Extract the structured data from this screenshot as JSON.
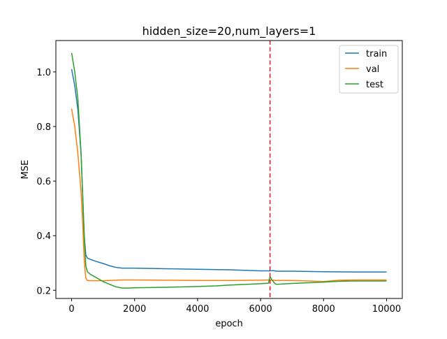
{
  "chart_data": {
    "type": "line",
    "title": "hidden_size=20,num_layers=1",
    "xlabel": "epoch",
    "ylabel": "MSE",
    "xlim": [
      -500,
      10500
    ],
    "ylim": [
      0.17,
      1.115
    ],
    "xticks": [
      0,
      2000,
      4000,
      6000,
      8000,
      10000
    ],
    "yticks": [
      0.2,
      0.4,
      0.6,
      0.8,
      1.0
    ],
    "xtick_labels": [
      "0",
      "2000",
      "4000",
      "6000",
      "8000",
      "10000"
    ],
    "ytick_labels": [
      "0.2",
      "0.4",
      "0.6",
      "0.8",
      "1.0"
    ],
    "grid": false,
    "legend_position": "top-right",
    "vline": {
      "x": 6300,
      "color": "#d62728",
      "style": "dashed"
    },
    "series": [
      {
        "name": "train",
        "color": "#1f77b4",
        "x": [
          0,
          100,
          200,
          300,
          350,
          400,
          450,
          500,
          600,
          800,
          1000,
          1200,
          1400,
          1600,
          2000,
          3000,
          4000,
          5000,
          6000,
          6300,
          6400,
          6500,
          7000,
          8000,
          9000,
          10000
        ],
        "y": [
          1.01,
          0.95,
          0.86,
          0.7,
          0.55,
          0.4,
          0.33,
          0.318,
          0.313,
          0.305,
          0.298,
          0.29,
          0.284,
          0.281,
          0.281,
          0.279,
          0.277,
          0.275,
          0.271,
          0.271,
          0.272,
          0.27,
          0.27,
          0.268,
          0.267,
          0.267
        ]
      },
      {
        "name": "val",
        "color": "#ff7f0e",
        "x": [
          0,
          100,
          200,
          300,
          350,
          400,
          450,
          500,
          600,
          800,
          1000,
          1400,
          1600,
          2000,
          3000,
          4000,
          5000,
          6000,
          6300,
          6400,
          6500,
          7000,
          8000,
          8500,
          9000,
          10000
        ],
        "y": [
          0.865,
          0.8,
          0.7,
          0.56,
          0.45,
          0.31,
          0.245,
          0.236,
          0.235,
          0.235,
          0.235,
          0.237,
          0.238,
          0.238,
          0.237,
          0.236,
          0.236,
          0.237,
          0.238,
          0.237,
          0.236,
          0.236,
          0.232,
          0.237,
          0.238,
          0.238
        ]
      },
      {
        "name": "test",
        "color": "#2ca02c",
        "x": [
          0,
          100,
          200,
          300,
          350,
          400,
          450,
          500,
          600,
          800,
          1000,
          1200,
          1400,
          1600,
          1800,
          2000,
          3000,
          4000,
          4600,
          5000,
          6000,
          6250,
          6300,
          6350,
          6450,
          6500,
          7000,
          8000,
          8500,
          9000,
          10000
        ],
        "y": [
          1.07,
          1.0,
          0.9,
          0.7,
          0.55,
          0.4,
          0.29,
          0.268,
          0.258,
          0.245,
          0.232,
          0.222,
          0.213,
          0.208,
          0.208,
          0.209,
          0.211,
          0.214,
          0.216,
          0.219,
          0.224,
          0.226,
          0.25,
          0.24,
          0.225,
          0.222,
          0.225,
          0.23,
          0.233,
          0.234,
          0.234
        ]
      }
    ]
  }
}
